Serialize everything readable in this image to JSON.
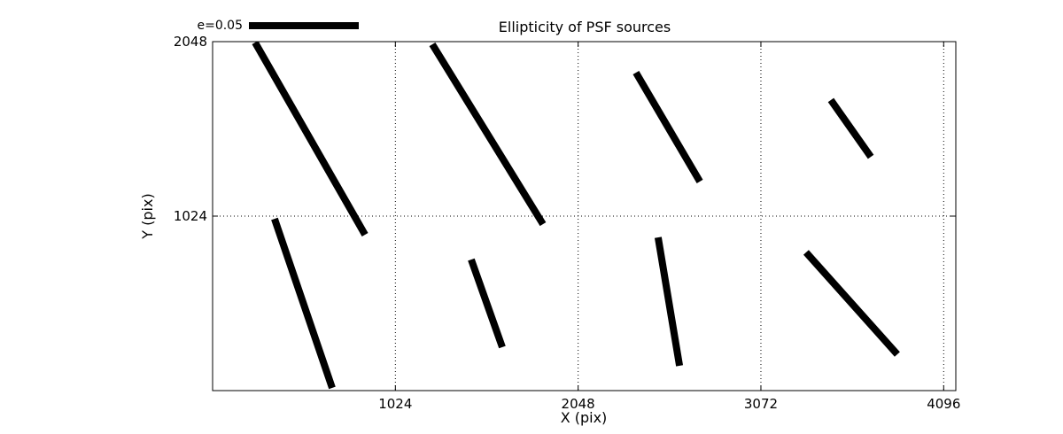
{
  "colors": {
    "foreground": "#000000",
    "background": "#ffffff"
  },
  "chart_data": {
    "type": "line",
    "title": "Ellipticity of PSF sources",
    "xlabel": "X (pix)",
    "ylabel": "Y (pix)",
    "xlim": [
      0,
      4164
    ],
    "ylim": [
      0,
      2048
    ],
    "x_ticks": [
      1024,
      2048,
      3072,
      4096
    ],
    "y_ticks": [
      1024,
      2048
    ],
    "grid": {
      "visible": true,
      "style": "dotted"
    },
    "legend": {
      "label": "e=0.05",
      "represents_ellipticity": 0.05,
      "position": "upper-left-outside"
    },
    "series": [
      {
        "name": "psf-ellipticity-whiskers",
        "segments": [
          {
            "x1": 238,
            "y1": 2043,
            "x2": 854,
            "y2": 915
          },
          {
            "x1": 347,
            "y1": 1008,
            "x2": 670,
            "y2": 16
          },
          {
            "x1": 1231,
            "y1": 2032,
            "x2": 1851,
            "y2": 977
          },
          {
            "x1": 1449,
            "y1": 769,
            "x2": 1623,
            "y2": 255
          },
          {
            "x1": 2372,
            "y1": 1866,
            "x2": 2730,
            "y2": 1227
          },
          {
            "x1": 2496,
            "y1": 899,
            "x2": 2616,
            "y2": 146
          },
          {
            "x1": 3464,
            "y1": 1705,
            "x2": 3688,
            "y2": 1372
          },
          {
            "x1": 3325,
            "y1": 811,
            "x2": 3836,
            "y2": 213
          }
        ]
      }
    ]
  }
}
